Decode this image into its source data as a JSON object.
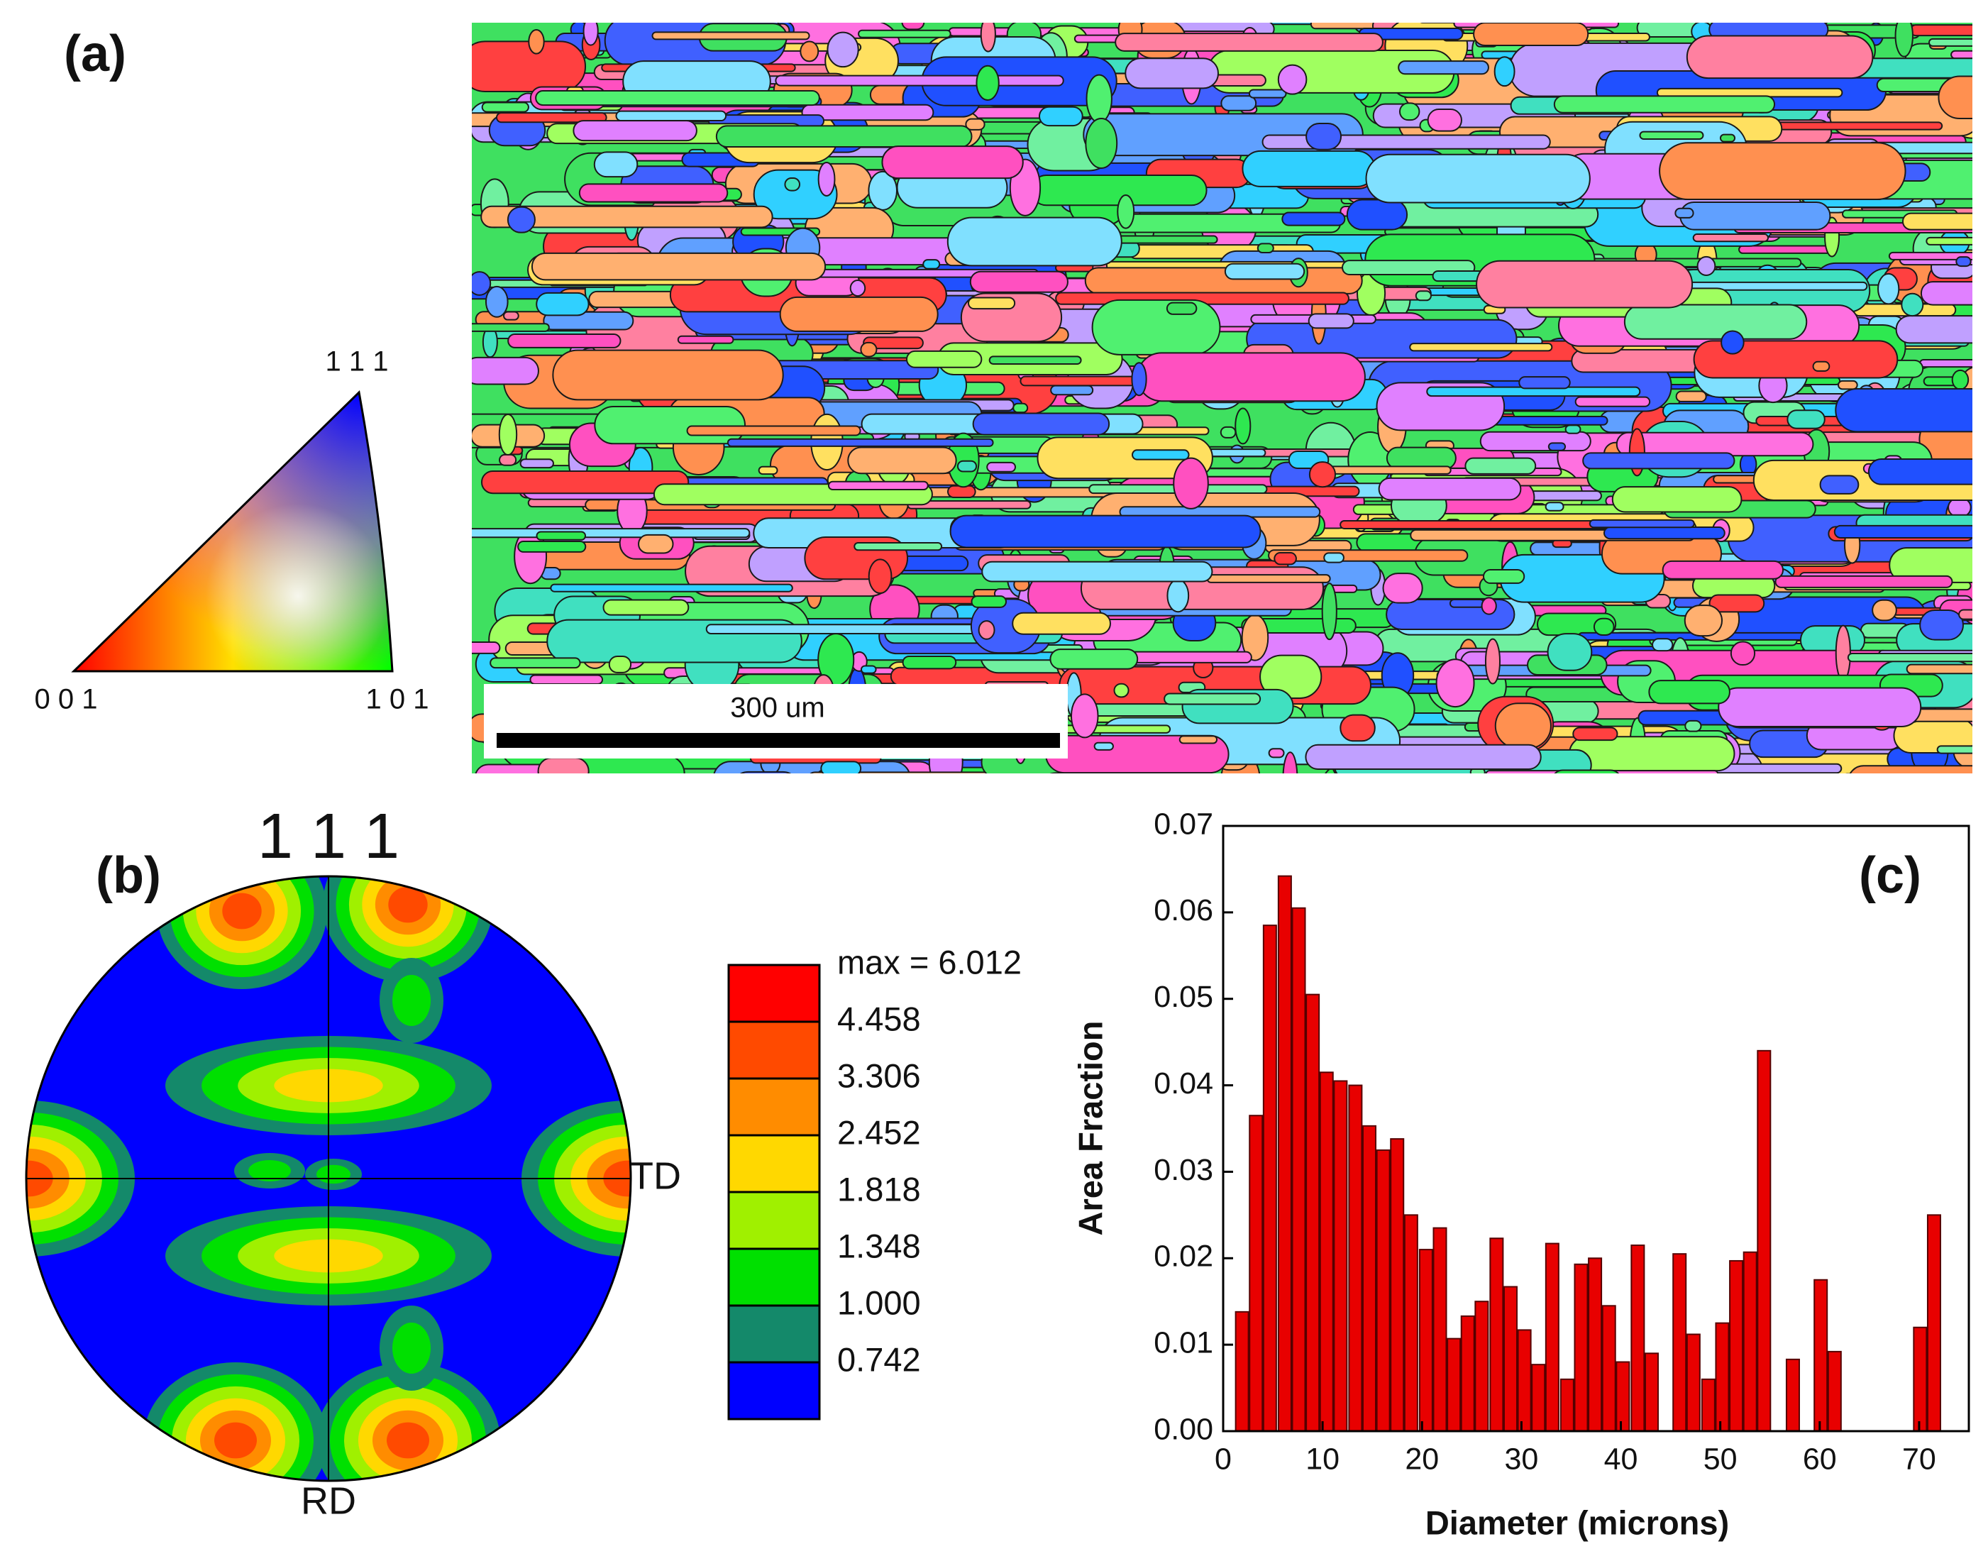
{
  "panel_a": {
    "label": "(a)",
    "ipf": {
      "top": "1 1 1",
      "left": "0 0 1",
      "right": "1 0 1"
    },
    "scale_bar": "300 um"
  },
  "panel_b": {
    "label": "(b)",
    "title": "1 1 1",
    "td": "TD",
    "rd": "RD",
    "legend": {
      "max_label": "max = 6.012",
      "colors": [
        "#ff0000",
        "#ff4a00",
        "#ff8c00",
        "#ffd800",
        "#a0f000",
        "#00e000",
        "#14896a",
        "#0000ff"
      ],
      "levels": [
        4.458,
        3.306,
        2.452,
        1.818,
        1.348,
        {
          "value": 1,
          "label": "1.000"
        },
        0.742
      ]
    }
  },
  "chart_data": {
    "type": "bar",
    "label": "(c)",
    "xlabel": "Diameter (microns)",
    "ylabel": "Area Fraction",
    "color": "#e80000",
    "x": [
      1.9,
      3.3,
      4.7,
      6.2,
      7.6,
      9.0,
      10.4,
      11.8,
      13.3,
      14.7,
      16.1,
      17.5,
      18.9,
      20.4,
      21.8,
      23.2,
      24.6,
      26.0,
      27.5,
      28.9,
      30.3,
      31.7,
      33.1,
      34.6,
      36.0,
      37.4,
      38.8,
      40.2,
      41.7,
      43.1,
      45.9,
      47.3,
      48.8,
      50.2,
      51.6,
      53.0,
      54.4,
      57.3,
      60.1,
      61.5,
      70.1,
      71.5
    ],
    "values": [
      0.0138,
      0.0365,
      0.0585,
      0.0642,
      0.0605,
      0.0505,
      0.0415,
      0.0405,
      0.04,
      0.0353,
      0.0325,
      0.0338,
      0.025,
      0.021,
      0.0235,
      0.0107,
      0.0133,
      0.015,
      0.0223,
      0.0167,
      0.0117,
      0.0077,
      0.0217,
      0.006,
      0.0193,
      0.02,
      0.0145,
      0.008,
      0.0215,
      0.009,
      0.0205,
      0.0112,
      0.006,
      0.0125,
      0.0197,
      0.0207,
      0.044,
      0.0083,
      0.0175,
      0.0092,
      0.012,
      0.025
    ],
    "xlim": [
      0,
      75
    ],
    "ylim": [
      0,
      0.07
    ],
    "xticks": [
      0,
      10,
      20,
      30,
      40,
      50,
      60,
      70
    ],
    "yticks": [
      {
        "value": 0,
        "label": "0.00"
      },
      0.01,
      0.02,
      0.03,
      0.04,
      0.05,
      0.06,
      0.07
    ]
  }
}
